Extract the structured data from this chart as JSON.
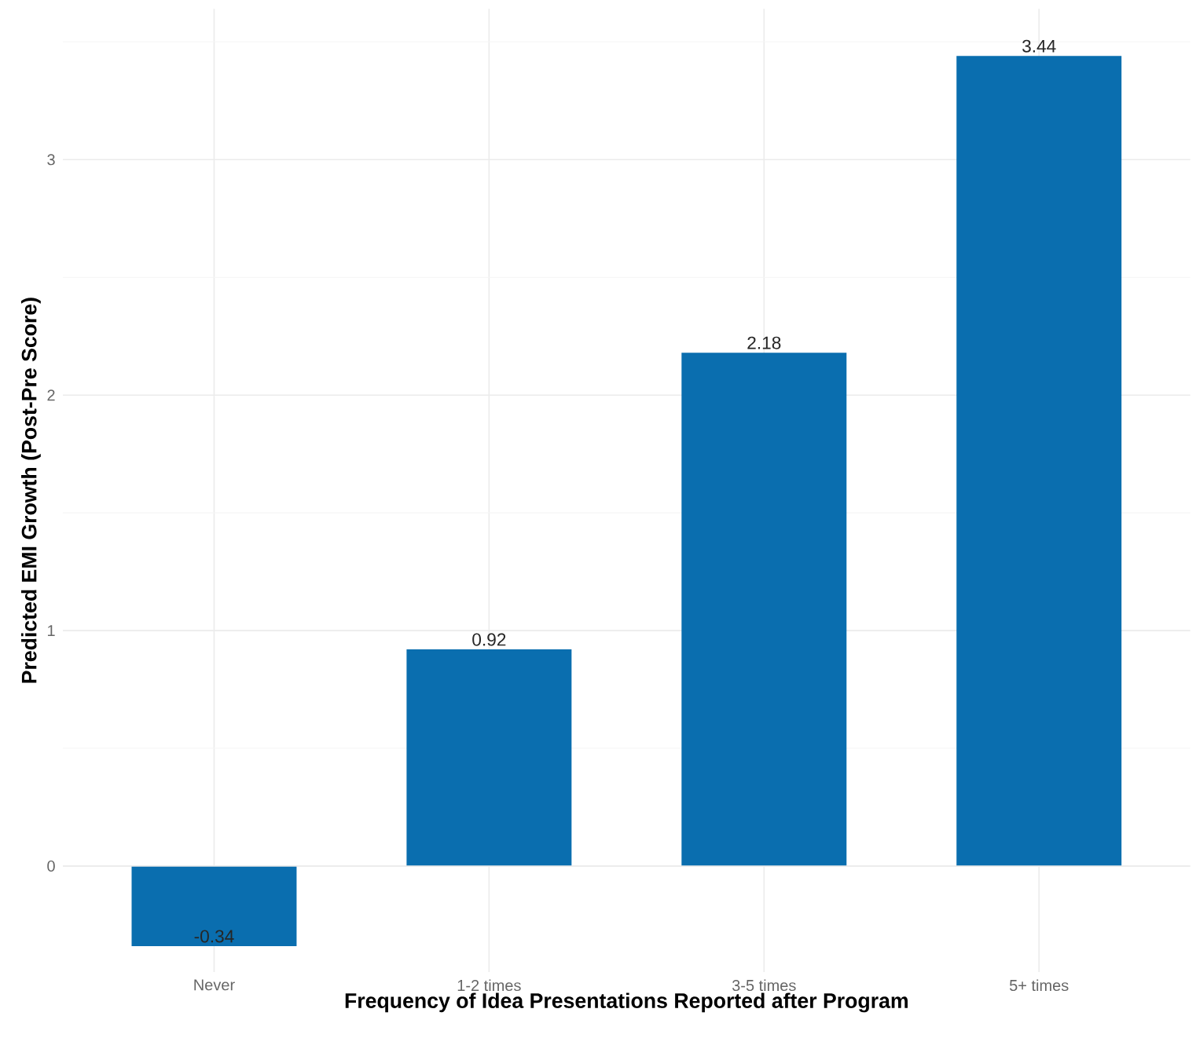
{
  "chart_data": {
    "type": "bar",
    "xlabel": "Frequency of Idea Presentations Reported after Program",
    "ylabel": "Predicted EMI Growth (Post-Pre Score)",
    "categories": [
      "Never",
      "1-2 times",
      "3-5 times",
      "5+ times"
    ],
    "values": [
      -0.34,
      0.92,
      2.18,
      3.44
    ],
    "color": "#0A6EAF",
    "ylim": [
      -0.45,
      3.64
    ],
    "yticks": [
      0,
      1,
      2,
      3
    ],
    "grid": true,
    "data_labels": true
  }
}
